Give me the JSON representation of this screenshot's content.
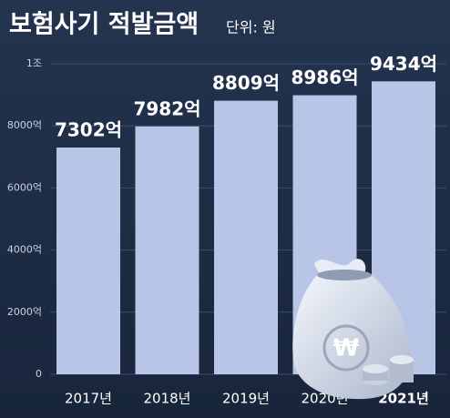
{
  "chart_data": {
    "type": "bar",
    "title": "보험사기 적발금액",
    "subtitle": "단위: 원",
    "categories": [
      "2017년",
      "2018년",
      "2019년",
      "2020년",
      "2021년"
    ],
    "values": [
      7302,
      7982,
      8809,
      8986,
      9434
    ],
    "value_labels": [
      "7302억",
      "7982억",
      "8809억",
      "8986억",
      "9434억"
    ],
    "color": "#b8c5e6",
    "ylim": [
      0,
      10000
    ],
    "yticks": [
      0,
      {
        "value": 2000,
        "label": "2000억"
      },
      {
        "value": 4000,
        "label": "4000억"
      },
      {
        "value": 6000,
        "label": "6000억"
      },
      {
        "value": 8000,
        "label": "8000억"
      },
      {
        "value": 10000,
        "label": "1조"
      }
    ],
    "grid": true
  }
}
